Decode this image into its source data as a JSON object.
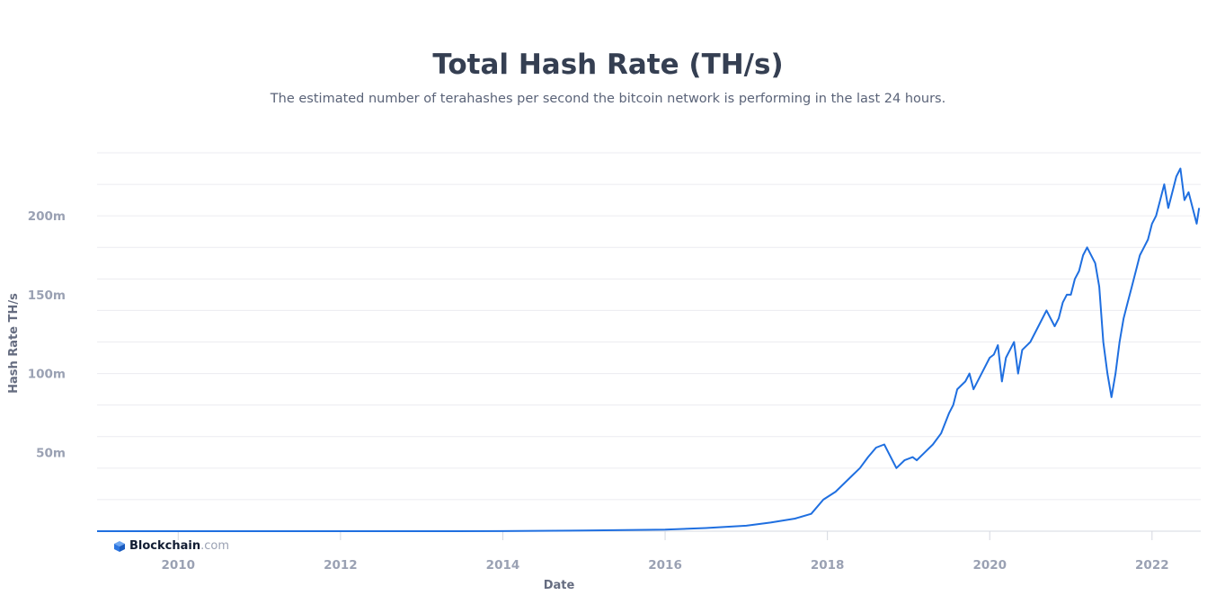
{
  "header": {
    "title": "Total Hash Rate (TH/s)",
    "subtitle": "The estimated number of terahashes per second the bitcoin network is performing in the last 24 hours."
  },
  "brand": {
    "name": "Blockchain",
    "tld": ".com",
    "logo_icon": "blockchain-cube-icon",
    "accent": "#2d76e0"
  },
  "colors": {
    "line": "#1f6fe0",
    "grid": "#ececf0",
    "tick": "#9aa1b3",
    "title": "#353f52"
  },
  "chart_data": {
    "type": "line",
    "title": "Total Hash Rate (TH/s)",
    "xlabel": "Date",
    "ylabel": "Hash Rate TH/s",
    "xlim": [
      2009.0,
      2022.6
    ],
    "ylim": [
      0,
      240000000
    ],
    "x_ticks": [
      2010,
      2012,
      2014,
      2016,
      2018,
      2020,
      2022
    ],
    "x_tick_labels": [
      "2010",
      "2012",
      "2014",
      "2016",
      "2018",
      "2020",
      "2022"
    ],
    "y_ticks": [
      50000000,
      100000000,
      150000000,
      200000000
    ],
    "y_tick_labels": [
      "50m",
      "100m",
      "150m",
      "200m"
    ],
    "grid": true,
    "legend": "none",
    "series": [
      {
        "x": [
          2009.0,
          2013.0,
          2014.0,
          2015.0,
          2016.0,
          2016.5,
          2017.0,
          2017.3,
          2017.6,
          2017.8,
          2017.95,
          2018.1,
          2018.2,
          2018.3,
          2018.4,
          2018.5,
          2018.6,
          2018.7,
          2018.75,
          2018.85,
          2018.95,
          2019.05,
          2019.1,
          2019.2,
          2019.3,
          2019.4,
          2019.5,
          2019.55,
          2019.6,
          2019.7,
          2019.75,
          2019.8,
          2019.9,
          2020.0,
          2020.05,
          2020.1,
          2020.15,
          2020.2,
          2020.3,
          2020.35,
          2020.4,
          2020.5,
          2020.6,
          2020.7,
          2020.8,
          2020.85,
          2020.9,
          2020.95,
          2021.0,
          2021.05,
          2021.1,
          2021.15,
          2021.2,
          2021.3,
          2021.35,
          2021.4,
          2021.45,
          2021.5,
          2021.55,
          2021.6,
          2021.65,
          2021.7,
          2021.75,
          2021.8,
          2021.85,
          2021.9,
          2021.95,
          2022.0,
          2022.05,
          2022.1,
          2022.15,
          2022.2,
          2022.25,
          2022.3,
          2022.35,
          2022.4,
          2022.45,
          2022.5,
          2022.55,
          2022.58
        ],
        "values": [
          0,
          10000,
          50000,
          400000,
          1000000,
          2000000,
          3500000,
          5500000,
          8000000,
          11000000,
          20000000,
          25000000,
          30000000,
          35000000,
          40000000,
          47000000,
          53000000,
          55000000,
          50000000,
          40000000,
          45000000,
          47000000,
          45000000,
          50000000,
          55000000,
          62000000,
          75000000,
          80000000,
          90000000,
          95000000,
          100000000,
          90000000,
          100000000,
          110000000,
          112000000,
          118000000,
          95000000,
          110000000,
          120000000,
          100000000,
          115000000,
          120000000,
          130000000,
          140000000,
          130000000,
          135000000,
          145000000,
          150000000,
          150000000,
          160000000,
          165000000,
          175000000,
          180000000,
          170000000,
          155000000,
          120000000,
          100000000,
          85000000,
          100000000,
          120000000,
          135000000,
          145000000,
          155000000,
          165000000,
          175000000,
          180000000,
          185000000,
          195000000,
          200000000,
          210000000,
          220000000,
          205000000,
          215000000,
          225000000,
          230000000,
          210000000,
          215000000,
          205000000,
          195000000,
          205000000
        ]
      }
    ]
  }
}
